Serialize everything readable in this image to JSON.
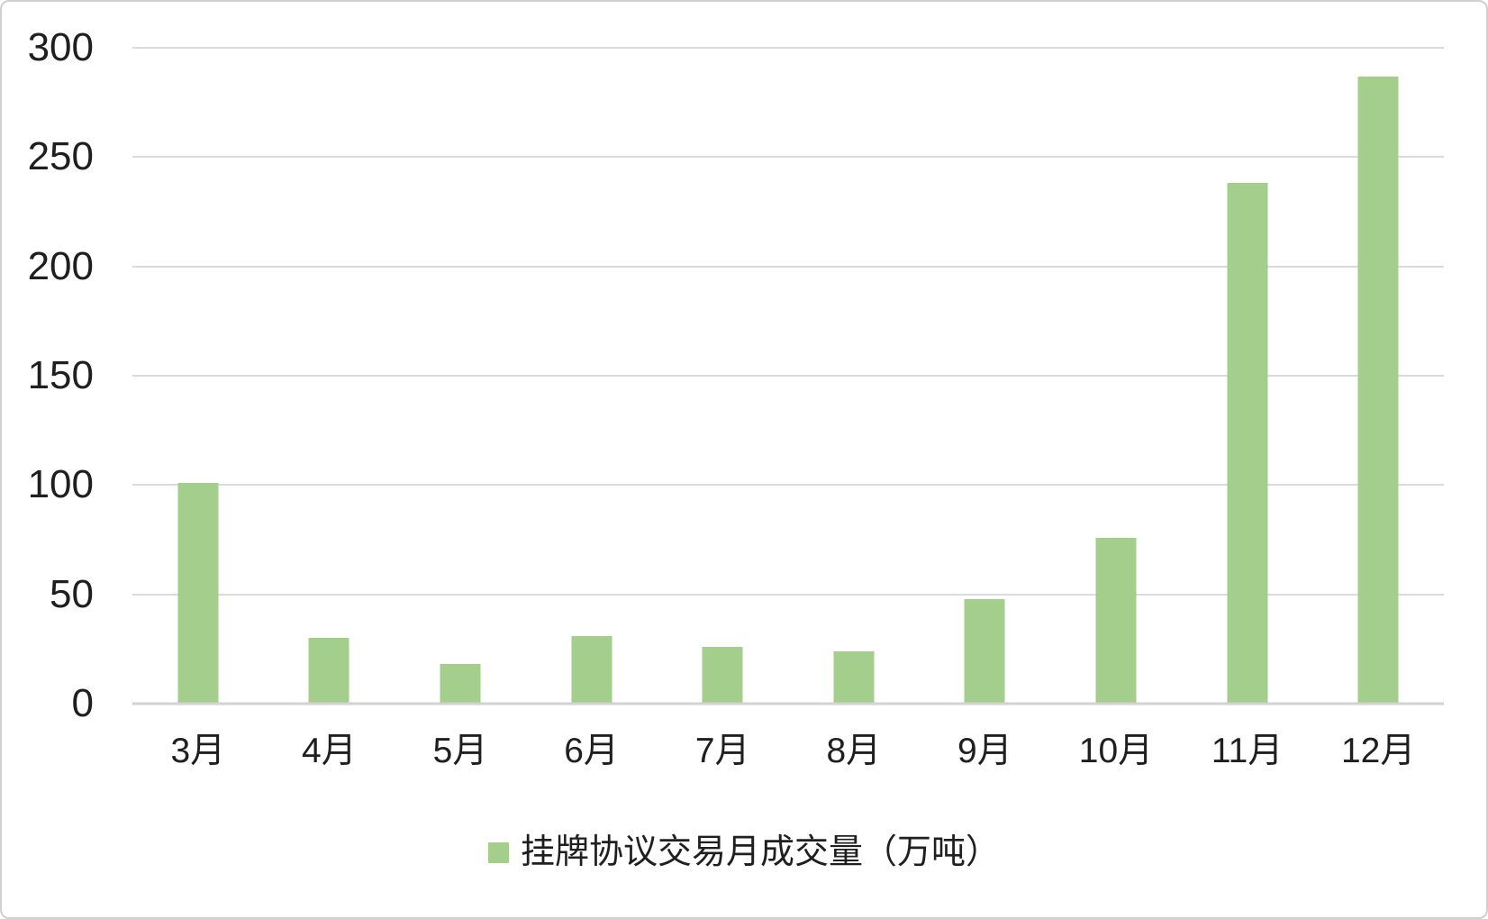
{
  "figure": {
    "background": "#ffffff",
    "border_color": "#d0d0d0"
  },
  "chart_data": {
    "type": "bar",
    "title": "",
    "xlabel": "",
    "ylabel": "",
    "categories": [
      "3月",
      "4月",
      "5月",
      "6月",
      "7月",
      "8月",
      "9月",
      "10月",
      "11月",
      "12月"
    ],
    "values": [
      101,
      30,
      18,
      31,
      26,
      24,
      48,
      76,
      238,
      287
    ],
    "series_name": "挂牌协议交易月成交量（万吨）",
    "ylim": [
      0,
      300
    ],
    "yticks": [
      0,
      50,
      100,
      150,
      200,
      250,
      300
    ],
    "grid": true,
    "legend_position": "bottom-center",
    "bar_color": "#a4ce8c",
    "gridline_color": "#dadada",
    "axis_line_color": "#d2d2d2",
    "tick_label_color": "#1f1f1f"
  },
  "legend": {
    "swatch_color": "#a4ce8c",
    "label": "挂牌协议交易月成交量（万吨）"
  }
}
